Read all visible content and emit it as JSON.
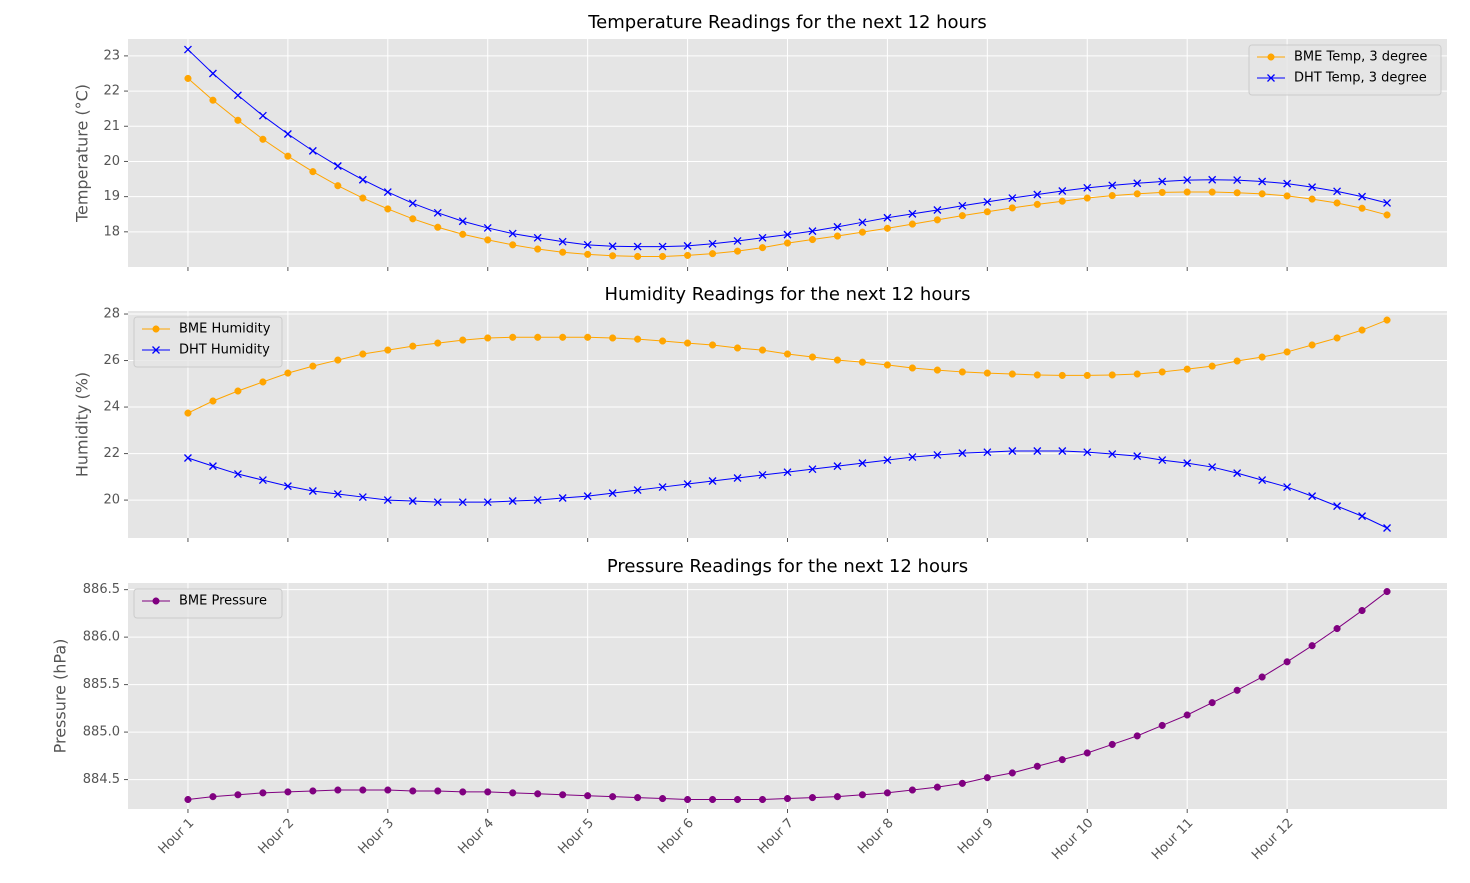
{
  "chart_data": [
    {
      "type": "line",
      "title": "Temperature Readings for the next 12 hours",
      "y_label": "Temperature (°C)",
      "x": [
        0,
        1,
        2,
        3,
        4,
        5,
        6,
        7,
        8,
        9,
        10,
        11,
        12,
        13,
        14,
        15,
        16,
        17,
        18,
        19,
        20,
        21,
        22,
        23,
        24,
        25,
        26,
        27,
        28,
        29,
        30,
        31,
        32,
        33,
        34,
        35,
        36,
        37,
        38,
        39,
        40,
        41,
        42,
        43,
        44,
        45,
        46,
        47,
        48
      ],
      "xlim": [
        -2.4,
        50.4
      ],
      "xticks": [
        0,
        4,
        8,
        12,
        16,
        20,
        24,
        28,
        32,
        36,
        40,
        44
      ],
      "ylim": [
        17.0,
        23.48
      ],
      "yticks": [
        18,
        19,
        20,
        21,
        22,
        23
      ],
      "grid": true,
      "legend": "upper right",
      "series": [
        {
          "name": "BME Temp, 3 degree",
          "color": "orange",
          "marker": "o",
          "values": [
            22.36,
            21.74,
            21.17,
            20.63,
            20.15,
            19.71,
            19.31,
            18.96,
            18.65,
            18.37,
            18.13,
            17.93,
            17.77,
            17.63,
            17.51,
            17.42,
            17.36,
            17.32,
            17.3,
            17.3,
            17.33,
            17.38,
            17.45,
            17.55,
            17.68,
            17.78,
            17.88,
            17.99,
            18.1,
            18.22,
            18.34,
            18.46,
            18.57,
            18.68,
            18.78,
            18.87,
            18.96,
            19.03,
            19.08,
            19.12,
            19.13,
            19.13,
            19.11,
            19.08,
            19.02,
            18.93,
            18.82,
            18.67,
            18.48
          ]
        },
        {
          "name": "DHT Temp, 3 degree",
          "color": "blue",
          "marker": "x",
          "values": [
            23.18,
            22.5,
            21.88,
            21.3,
            20.78,
            20.3,
            19.87,
            19.48,
            19.13,
            18.81,
            18.54,
            18.3,
            18.11,
            17.95,
            17.83,
            17.72,
            17.63,
            17.59,
            17.58,
            17.58,
            17.6,
            17.66,
            17.74,
            17.83,
            17.92,
            18.02,
            18.14,
            18.27,
            18.4,
            18.51,
            18.62,
            18.74,
            18.85,
            18.96,
            19.06,
            19.16,
            19.25,
            19.32,
            19.38,
            19.43,
            19.47,
            19.48,
            19.47,
            19.43,
            19.37,
            19.27,
            19.15,
            19.0,
            18.82
          ]
        }
      ]
    },
    {
      "type": "line",
      "title": "Humidity Readings for the next 12 hours",
      "y_label": "Humidity (%)",
      "x": [
        0,
        1,
        2,
        3,
        4,
        5,
        6,
        7,
        8,
        9,
        10,
        11,
        12,
        13,
        14,
        15,
        16,
        17,
        18,
        19,
        20,
        21,
        22,
        23,
        24,
        25,
        26,
        27,
        28,
        29,
        30,
        31,
        32,
        33,
        34,
        35,
        36,
        37,
        38,
        39,
        40,
        41,
        42,
        43,
        44,
        45,
        46,
        47,
        48
      ],
      "xlim": [
        -2.4,
        50.4
      ],
      "xticks": [
        0,
        4,
        8,
        12,
        16,
        20,
        24,
        28,
        32,
        36,
        40,
        44
      ],
      "ylim": [
        18.37,
        28.13
      ],
      "yticks": [
        20,
        22,
        24,
        26,
        28
      ],
      "grid": true,
      "legend": "upper left",
      "series": [
        {
          "name": "BME Humidity",
          "color": "orange",
          "marker": "o",
          "values": [
            23.74,
            24.26,
            24.69,
            25.08,
            25.46,
            25.76,
            26.02,
            26.28,
            26.45,
            26.62,
            26.75,
            26.88,
            26.97,
            27.0,
            27.0,
            27.0,
            27.0,
            26.97,
            26.92,
            26.84,
            26.75,
            26.67,
            26.54,
            26.45,
            26.28,
            26.15,
            26.02,
            25.93,
            25.81,
            25.68,
            25.59,
            25.51,
            25.46,
            25.42,
            25.38,
            25.36,
            25.36,
            25.38,
            25.42,
            25.51,
            25.63,
            25.76,
            25.98,
            26.15,
            26.37,
            26.67,
            26.97,
            27.31,
            27.74
          ]
        },
        {
          "name": "DHT Humidity",
          "color": "blue",
          "marker": "x",
          "values": [
            21.81,
            21.46,
            21.12,
            20.86,
            20.6,
            20.39,
            20.26,
            20.13,
            20.0,
            19.96,
            19.91,
            19.91,
            19.91,
            19.96,
            20.0,
            20.09,
            20.17,
            20.3,
            20.43,
            20.56,
            20.69,
            20.82,
            20.95,
            21.08,
            21.2,
            21.33,
            21.46,
            21.59,
            21.72,
            21.85,
            21.94,
            22.02,
            22.06,
            22.11,
            22.11,
            22.11,
            22.06,
            21.98,
            21.89,
            21.72,
            21.59,
            21.42,
            21.16,
            20.86,
            20.56,
            20.17,
            19.74,
            19.31,
            18.8
          ]
        }
      ]
    },
    {
      "type": "line",
      "title": "Pressure Readings for the next 12 hours",
      "y_label": "Pressure (hPa)",
      "x": [
        0,
        1,
        2,
        3,
        4,
        5,
        6,
        7,
        8,
        9,
        10,
        11,
        12,
        13,
        14,
        15,
        16,
        17,
        18,
        19,
        20,
        21,
        22,
        23,
        24,
        25,
        26,
        27,
        28,
        29,
        30,
        31,
        32,
        33,
        34,
        35,
        36,
        37,
        38,
        39,
        40,
        41,
        42,
        43,
        44,
        45,
        46,
        47,
        48
      ],
      "xlim": [
        -2.4,
        50.4
      ],
      "xticks": [
        {
          "value": 0,
          "label": "Hour 1"
        },
        {
          "value": 4,
          "label": "Hour 2"
        },
        {
          "value": 8,
          "label": "Hour 3"
        },
        {
          "value": 12,
          "label": "Hour 4"
        },
        {
          "value": 16,
          "label": "Hour 5"
        },
        {
          "value": 20,
          "label": "Hour 6"
        },
        {
          "value": 24,
          "label": "Hour 7"
        },
        {
          "value": 28,
          "label": "Hour 8"
        },
        {
          "value": 32,
          "label": "Hour 9"
        },
        {
          "value": 36,
          "label": "Hour 10"
        },
        {
          "value": 40,
          "label": "Hour 11"
        },
        {
          "value": 44,
          "label": "Hour 12"
        }
      ],
      "ylim": [
        884.19,
        886.57
      ],
      "yticks": [
        884.5,
        {
          "value": 885.0,
          "label": "885.0"
        },
        885.5,
        {
          "value": 886.0,
          "label": "886.0"
        },
        886.5
      ],
      "grid": true,
      "legend": "upper left",
      "series": [
        {
          "name": "BME Pressure",
          "color": "purple",
          "marker": "o",
          "values": [
            884.29,
            884.32,
            884.34,
            884.36,
            884.37,
            884.38,
            884.39,
            884.39,
            884.39,
            884.38,
            884.38,
            884.37,
            884.37,
            884.36,
            884.35,
            884.34,
            884.33,
            884.32,
            884.31,
            884.3,
            884.29,
            884.29,
            884.29,
            884.29,
            884.3,
            884.31,
            884.32,
            884.34,
            884.36,
            884.39,
            884.42,
            884.46,
            884.52,
            884.57,
            884.64,
            884.71,
            884.78,
            884.87,
            884.96,
            885.07,
            885.18,
            885.31,
            885.44,
            885.58,
            885.74,
            885.91,
            886.09,
            886.28,
            886.48
          ]
        }
      ]
    }
  ]
}
